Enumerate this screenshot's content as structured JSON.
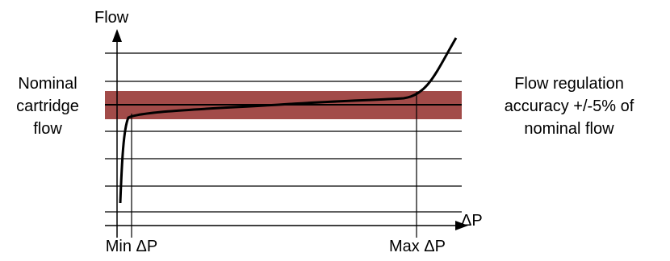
{
  "colors": {
    "background": "#ffffff",
    "band": "#a24b49",
    "line": "#000000"
  },
  "labels": {
    "y_axis": "Flow",
    "x_axis": "ΔP",
    "nominal_line1": "Nominal",
    "nominal_line2": "cartridge",
    "nominal_line3": "flow",
    "accuracy_line1": "Flow regulation",
    "accuracy_line2": "accuracy +/-5% of",
    "accuracy_line3": "nominal flow",
    "min_dp": "Min ΔP",
    "max_dp": "Max ΔP"
  }
}
